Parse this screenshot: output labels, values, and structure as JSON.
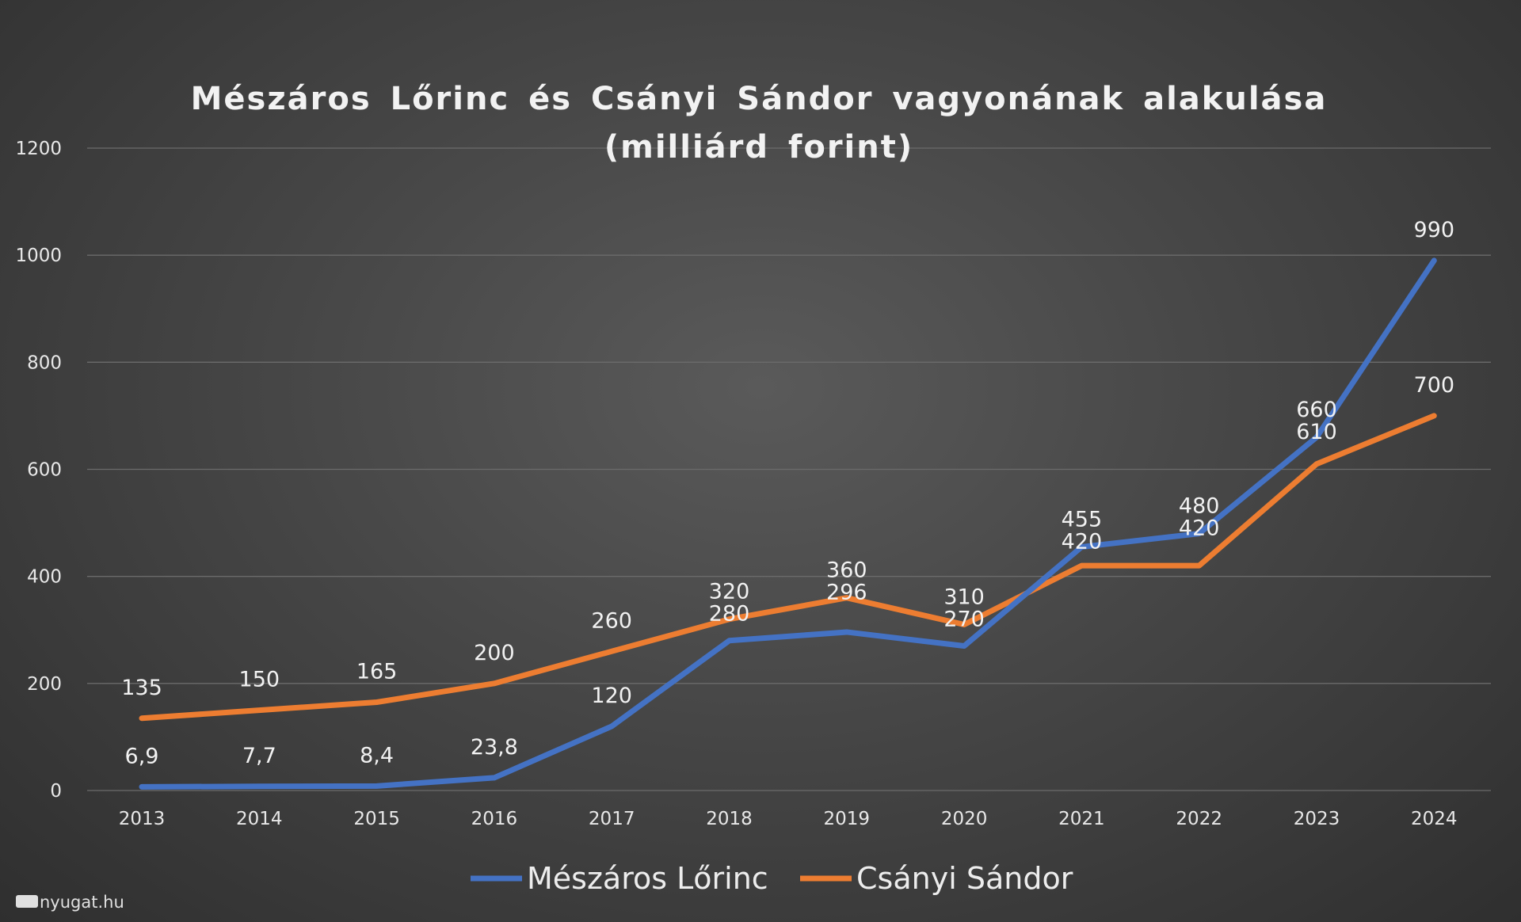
{
  "chart_data": {
    "type": "line",
    "title": "Mészáros Lőrinc és Csányi Sándor vagyonának alakulása",
    "subtitle": "(milliárd forint)",
    "categories": [
      "2013",
      "2014",
      "2015",
      "2016",
      "2017",
      "2018",
      "2019",
      "2020",
      "2021",
      "2022",
      "2023",
      "2024"
    ],
    "series": [
      {
        "name": "Mészáros Lőrinc",
        "color": "#4472c4",
        "values": [
          6.9,
          7.7,
          8.4,
          23.8,
          120,
          280,
          296,
          270,
          455,
          480,
          660,
          990
        ],
        "labels": [
          "6,9",
          "7,7",
          "8,4",
          "23,8",
          "120",
          "280",
          "296",
          "270",
          "455",
          "480",
          "660",
          "990"
        ]
      },
      {
        "name": "Csányi Sándor",
        "color": "#ed7d31",
        "values": [
          135,
          150,
          165,
          200,
          260,
          320,
          360,
          310,
          420,
          420,
          610,
          700
        ],
        "labels": [
          "135",
          "150",
          "165",
          "200",
          "260",
          "320",
          "360",
          "310",
          "420",
          "420",
          "610",
          "700"
        ]
      }
    ],
    "y_ticks": [
      "0",
      "200",
      "400",
      "600",
      "800",
      "1000",
      "1200"
    ],
    "ylim": [
      0,
      1200
    ],
    "grid": true,
    "legend_position": "bottom"
  },
  "watermark": "nyugat.hu"
}
